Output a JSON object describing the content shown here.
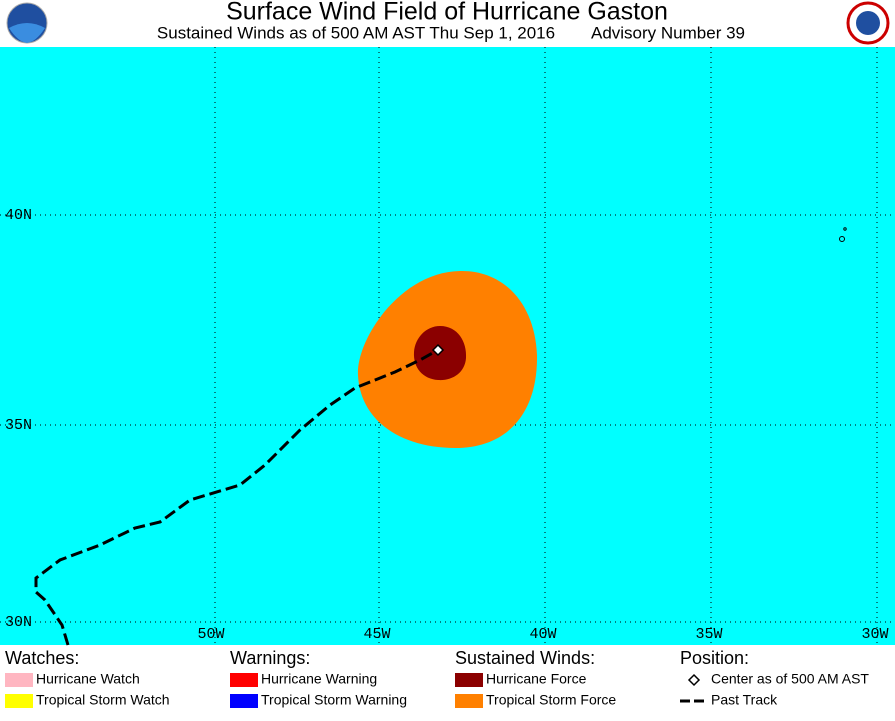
{
  "header": {
    "title": "Surface Wind Field of Hurricane Gaston",
    "subtitle": "Sustained Winds as of 500 AM AST Thu Sep 1, 2016",
    "advisory": "Advisory Number 39"
  },
  "map": {
    "lat_labels": [
      "40N",
      "35N",
      "30N"
    ],
    "lon_labels": [
      "50W",
      "45W",
      "40W",
      "35W",
      "30W"
    ]
  },
  "legend": {
    "watches": {
      "title": "Watches:",
      "items": [
        "Hurricane Watch",
        "Tropical Storm Watch"
      ]
    },
    "warnings": {
      "title": "Warnings:",
      "items": [
        "Hurricane Warning",
        "Tropical Storm Warning"
      ]
    },
    "winds": {
      "title": "Sustained Winds:",
      "items": [
        "Hurricane Force",
        "Tropical Storm Force"
      ]
    },
    "position": {
      "title": "Position:",
      "items": [
        "Center as of 500 AM AST",
        "Past Track"
      ]
    }
  }
}
